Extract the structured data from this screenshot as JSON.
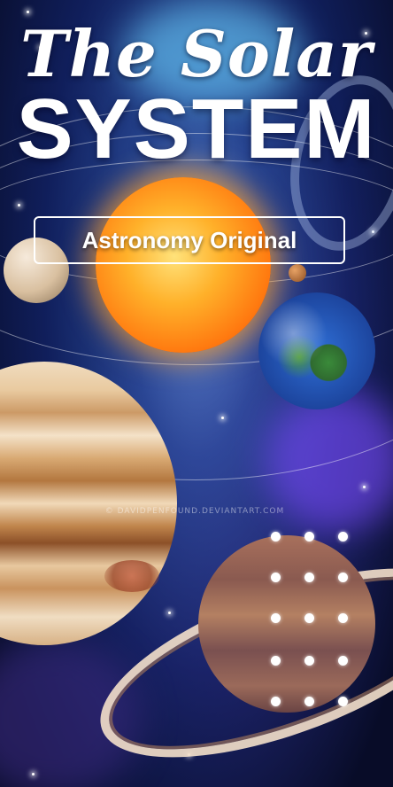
{
  "title": {
    "script": "The Solar",
    "main": "SYSTEM"
  },
  "subtitle": "Astronomy Original",
  "watermark": "© DAVIDPENFOUND.DEVIANTART.COM",
  "lock_pattern": {
    "rows": 5,
    "cols": 3,
    "dots": 15
  },
  "colors": {
    "text": "#ffffff",
    "sky": "#0a1030",
    "sun": "#ff9a20"
  }
}
